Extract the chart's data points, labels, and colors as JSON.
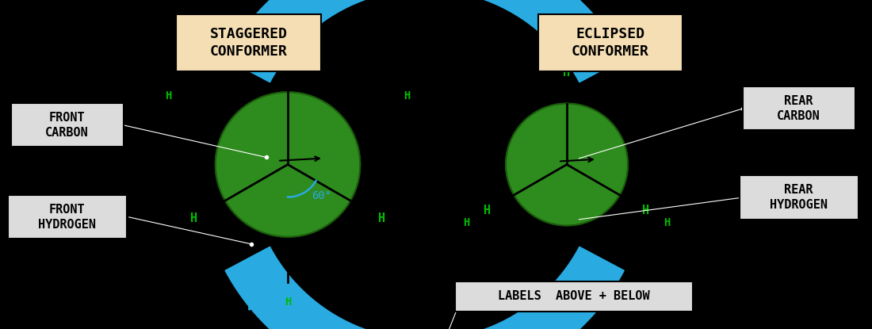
{
  "bg_color": "#000000",
  "arrow_color": "#29ABE2",
  "green_fill": "#2E8B1E",
  "green_edge": "#1A5C0A",
  "h_color": "#00BB00",
  "label_staggered_bg": "#F5DEB3",
  "label_eclipsed_bg": "#F5DEB3",
  "label_other_bg": "#DCDCDC",
  "staggered_label": "STAGGERED\nCONFORMER",
  "eclipsed_label": "ECLIPSED\nCONFORMER",
  "front_carbon_label": "FRONT\nCARBON",
  "front_hydrogen_label": "FRONT\nHYDROGEN",
  "rear_carbon_label": "REAR\nCARBON",
  "rear_hydrogen_label": "REAR\nHYDROGEN",
  "labels_below_label": "LABELS  ABOVE + BELOW",
  "scx": 0.33,
  "scy": 0.5,
  "ecx": 0.65,
  "ecy": 0.5,
  "sr": 0.083,
  "er": 0.07,
  "acx": 0.487,
  "acy": 0.5,
  "big_r": 0.23,
  "arc_lw": 0.058
}
